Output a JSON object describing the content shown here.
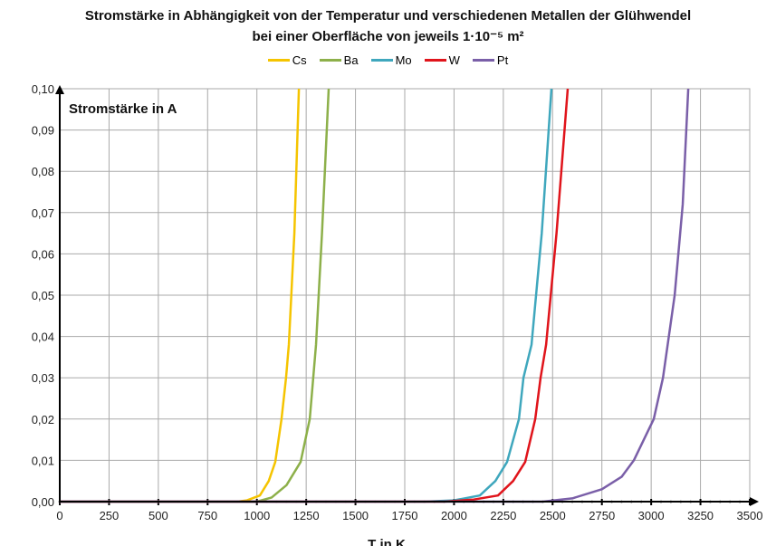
{
  "chart_data": {
    "type": "line",
    "title": "Stromstärke in Abhängigkeit von der Temperatur und verschiedenen Metallen der Glühwendel",
    "subtitle": "bei einer Oberfläche von jeweils 1·10⁻⁵ m²",
    "xlabel": "T in K",
    "ylabel": "Stromstärke in A",
    "xlim": [
      0,
      3500
    ],
    "ylim": [
      0,
      0.1
    ],
    "xticks": [
      "0",
      "250",
      "500",
      "750",
      "1000",
      "1250",
      "1500",
      "1750",
      "2000",
      "2250",
      "2500",
      "2750",
      "3000",
      "3250",
      "3500"
    ],
    "yticks": [
      "0,00",
      "0,01",
      "0,02",
      "0,03",
      "0,04",
      "0,05",
      "0,06",
      "0,07",
      "0,08",
      "0,09",
      "0,10"
    ],
    "grid": true,
    "legend": "top",
    "series": [
      {
        "name": "Cs",
        "color": "#f5c400",
        "points": [
          [
            0,
            0
          ],
          [
            900,
            0
          ],
          [
            950,
            0.0003
          ],
          [
            1015,
            0.0015
          ],
          [
            1060,
            0.005
          ],
          [
            1093,
            0.0096
          ],
          [
            1125,
            0.02
          ],
          [
            1148,
            0.03
          ],
          [
            1162,
            0.038
          ],
          [
            1190,
            0.065
          ],
          [
            1213,
            0.1
          ]
        ]
      },
      {
        "name": "Ba",
        "color": "#8db04a",
        "points": [
          [
            0,
            0
          ],
          [
            1000,
            0
          ],
          [
            1075,
            0.001
          ],
          [
            1150,
            0.004
          ],
          [
            1222,
            0.0096
          ],
          [
            1268,
            0.02
          ],
          [
            1300,
            0.038
          ],
          [
            1330,
            0.065
          ],
          [
            1364,
            0.1
          ]
        ]
      },
      {
        "name": "Mo",
        "color": "#3fa7bd",
        "points": [
          [
            0,
            0
          ],
          [
            1850,
            0
          ],
          [
            2000,
            0.0003
          ],
          [
            2131,
            0.0015
          ],
          [
            2210,
            0.005
          ],
          [
            2269,
            0.0096
          ],
          [
            2329,
            0.02
          ],
          [
            2352,
            0.03
          ],
          [
            2393,
            0.038
          ],
          [
            2445,
            0.065
          ],
          [
            2494,
            0.1
          ]
        ]
      },
      {
        "name": "W",
        "color": "#e0141b",
        "points": [
          [
            0,
            0
          ],
          [
            1950,
            0
          ],
          [
            2100,
            0.0005
          ],
          [
            2223,
            0.0015
          ],
          [
            2300,
            0.005
          ],
          [
            2361,
            0.0096
          ],
          [
            2412,
            0.02
          ],
          [
            2439,
            0.03
          ],
          [
            2467,
            0.038
          ],
          [
            2520,
            0.065
          ],
          [
            2577,
            0.1
          ]
        ]
      },
      {
        "name": "Pt",
        "color": "#7a5fa8",
        "points": [
          [
            0,
            0
          ],
          [
            2450,
            0
          ],
          [
            2600,
            0.0008
          ],
          [
            2750,
            0.003
          ],
          [
            2850,
            0.006
          ],
          [
            2912,
            0.01
          ],
          [
            3013,
            0.02
          ],
          [
            3060,
            0.03
          ],
          [
            3119,
            0.05
          ],
          [
            3160,
            0.072
          ],
          [
            3188,
            0.1
          ]
        ]
      }
    ]
  }
}
